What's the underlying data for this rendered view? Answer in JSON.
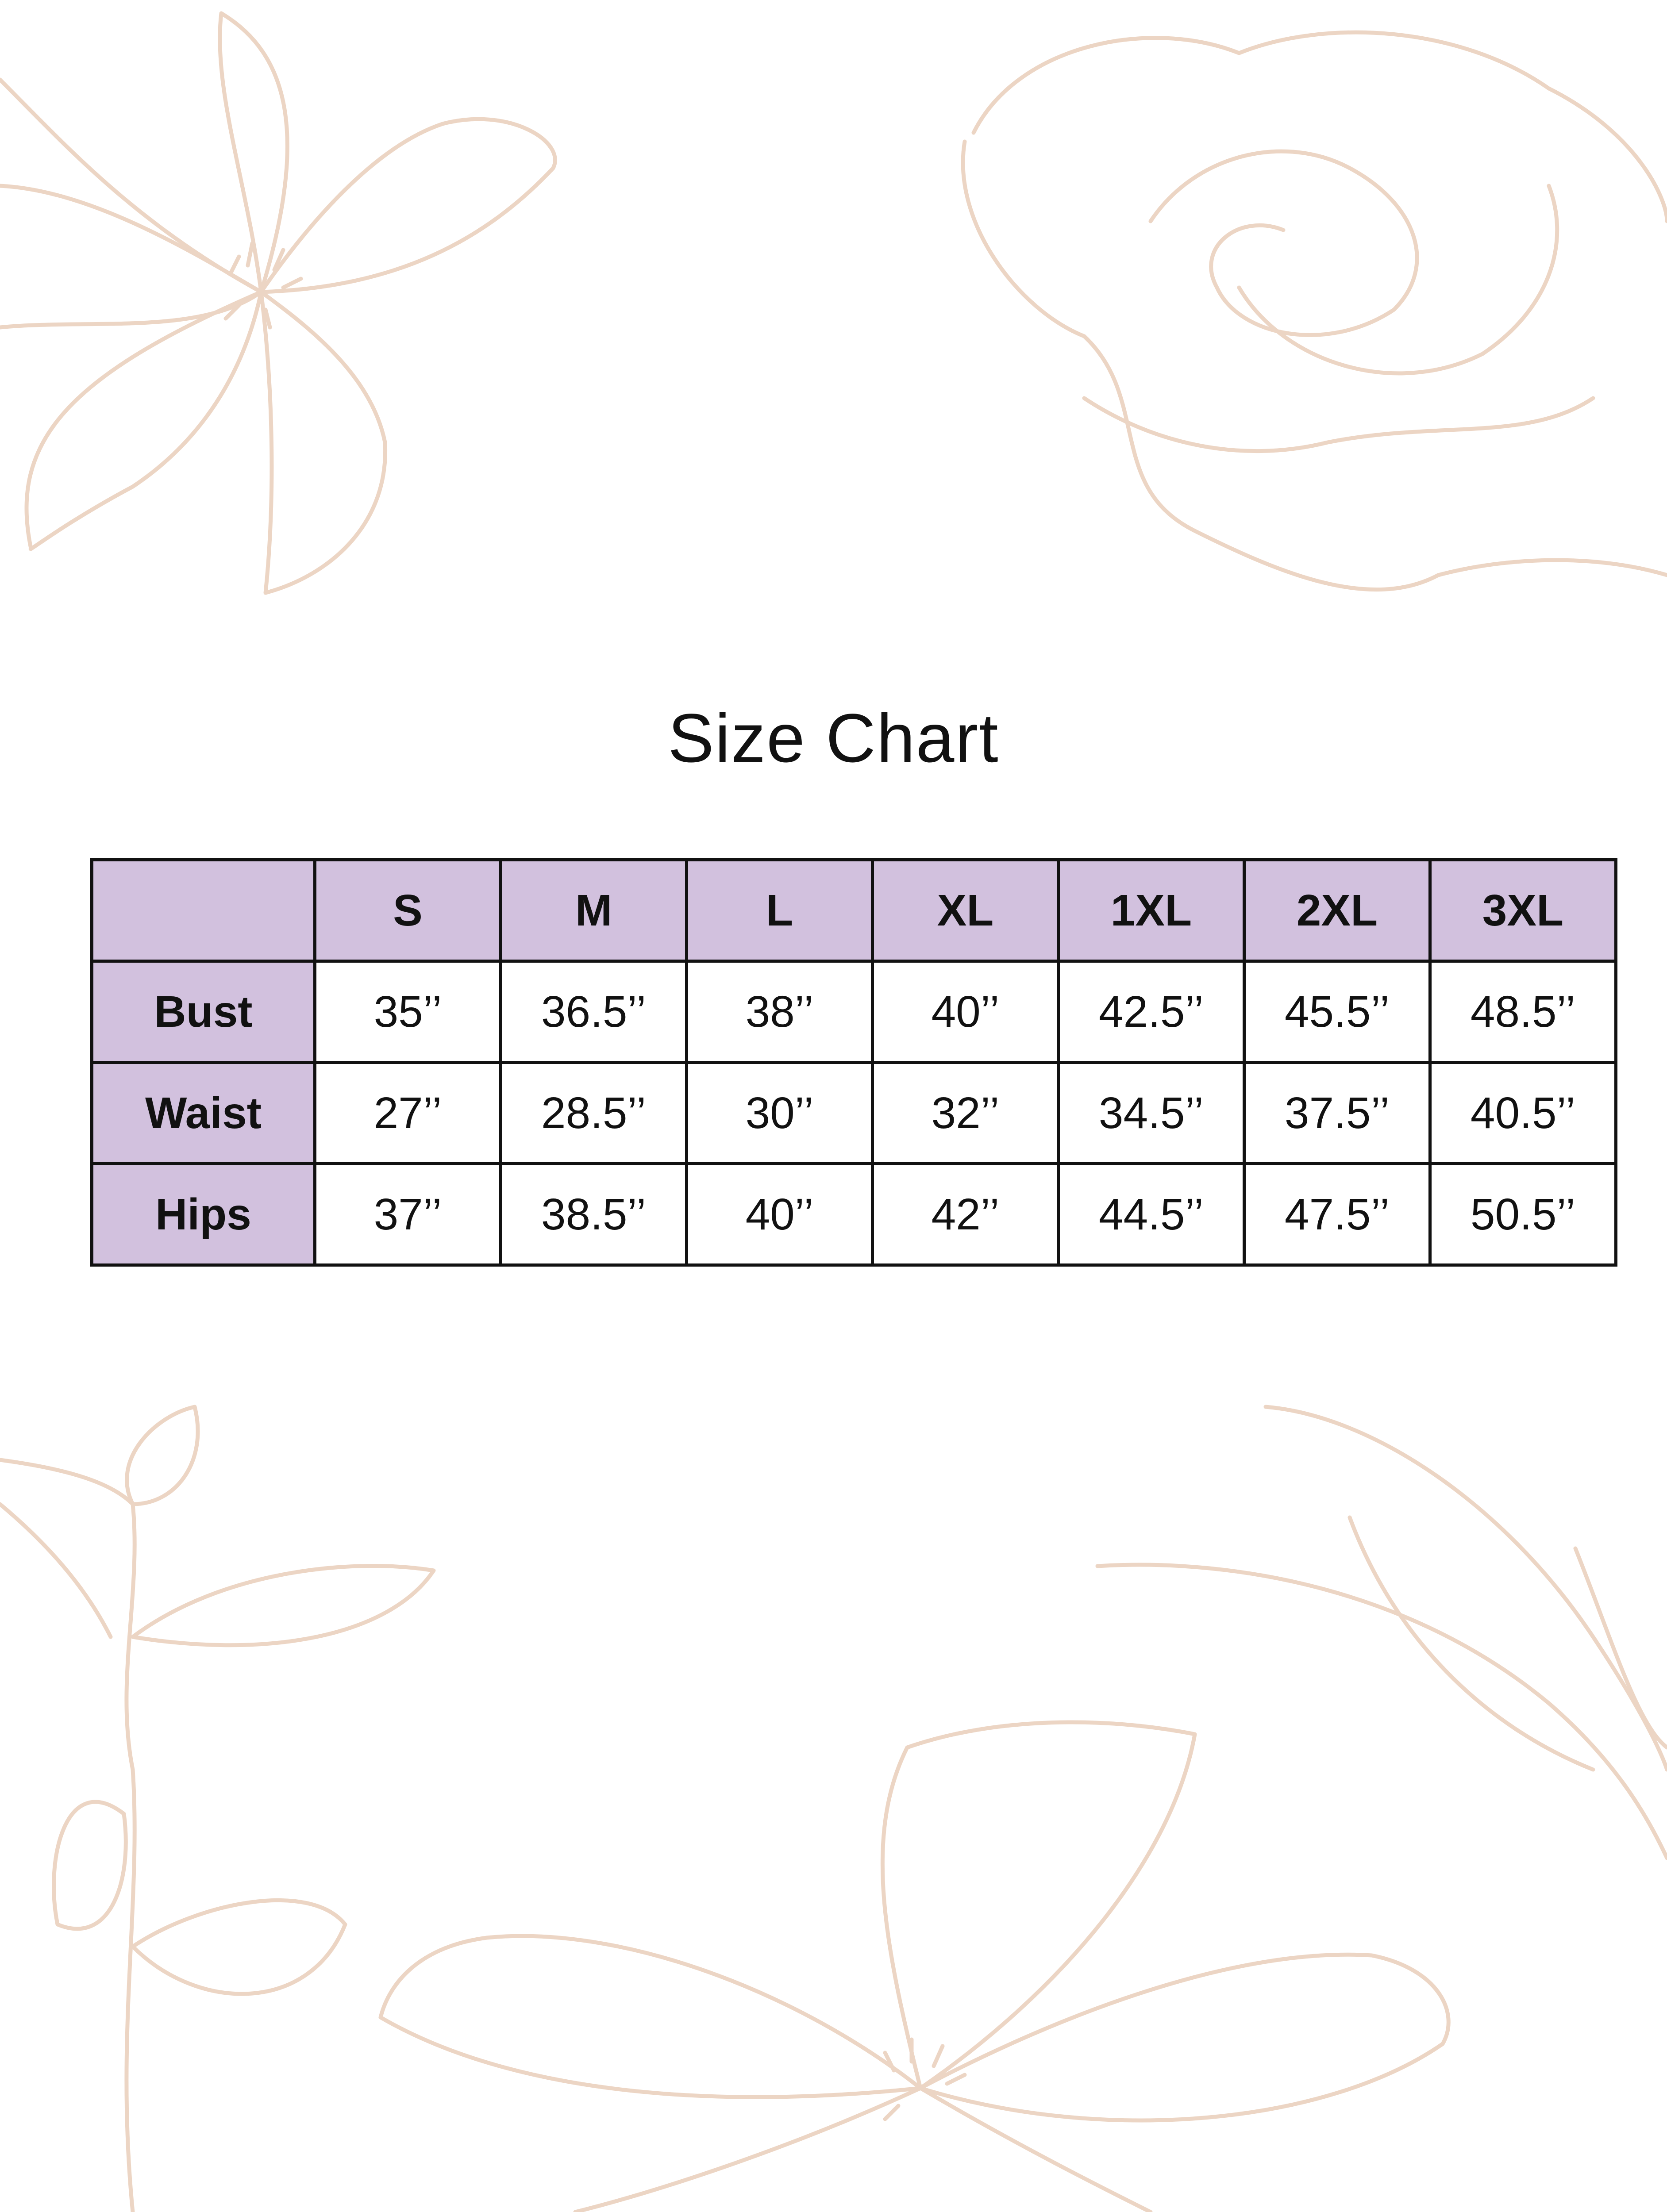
{
  "title": "Size Chart",
  "colors": {
    "header_fill": "#d2c1de",
    "border": "#111111",
    "floral_line": "#ecd5c4"
  },
  "table": {
    "corner": "",
    "columns": [
      "S",
      "M",
      "L",
      "XL",
      "1XL",
      "2XL",
      "3XL"
    ],
    "rows": [
      {
        "label": "Bust",
        "values": [
          "35’’",
          "36.5’’",
          "38’’",
          "40’’",
          "42.5’’",
          "45.5’’",
          "48.5’’"
        ]
      },
      {
        "label": "Waist",
        "values": [
          "27’’",
          "28.5’’",
          "30’’",
          "32’’",
          "34.5’’",
          "37.5’’",
          "40.5’’"
        ]
      },
      {
        "label": "Hips",
        "values": [
          "37’’",
          "38.5’’",
          "40’’",
          "42’’",
          "44.5’’",
          "47.5’’",
          "50.5’’"
        ]
      }
    ]
  }
}
